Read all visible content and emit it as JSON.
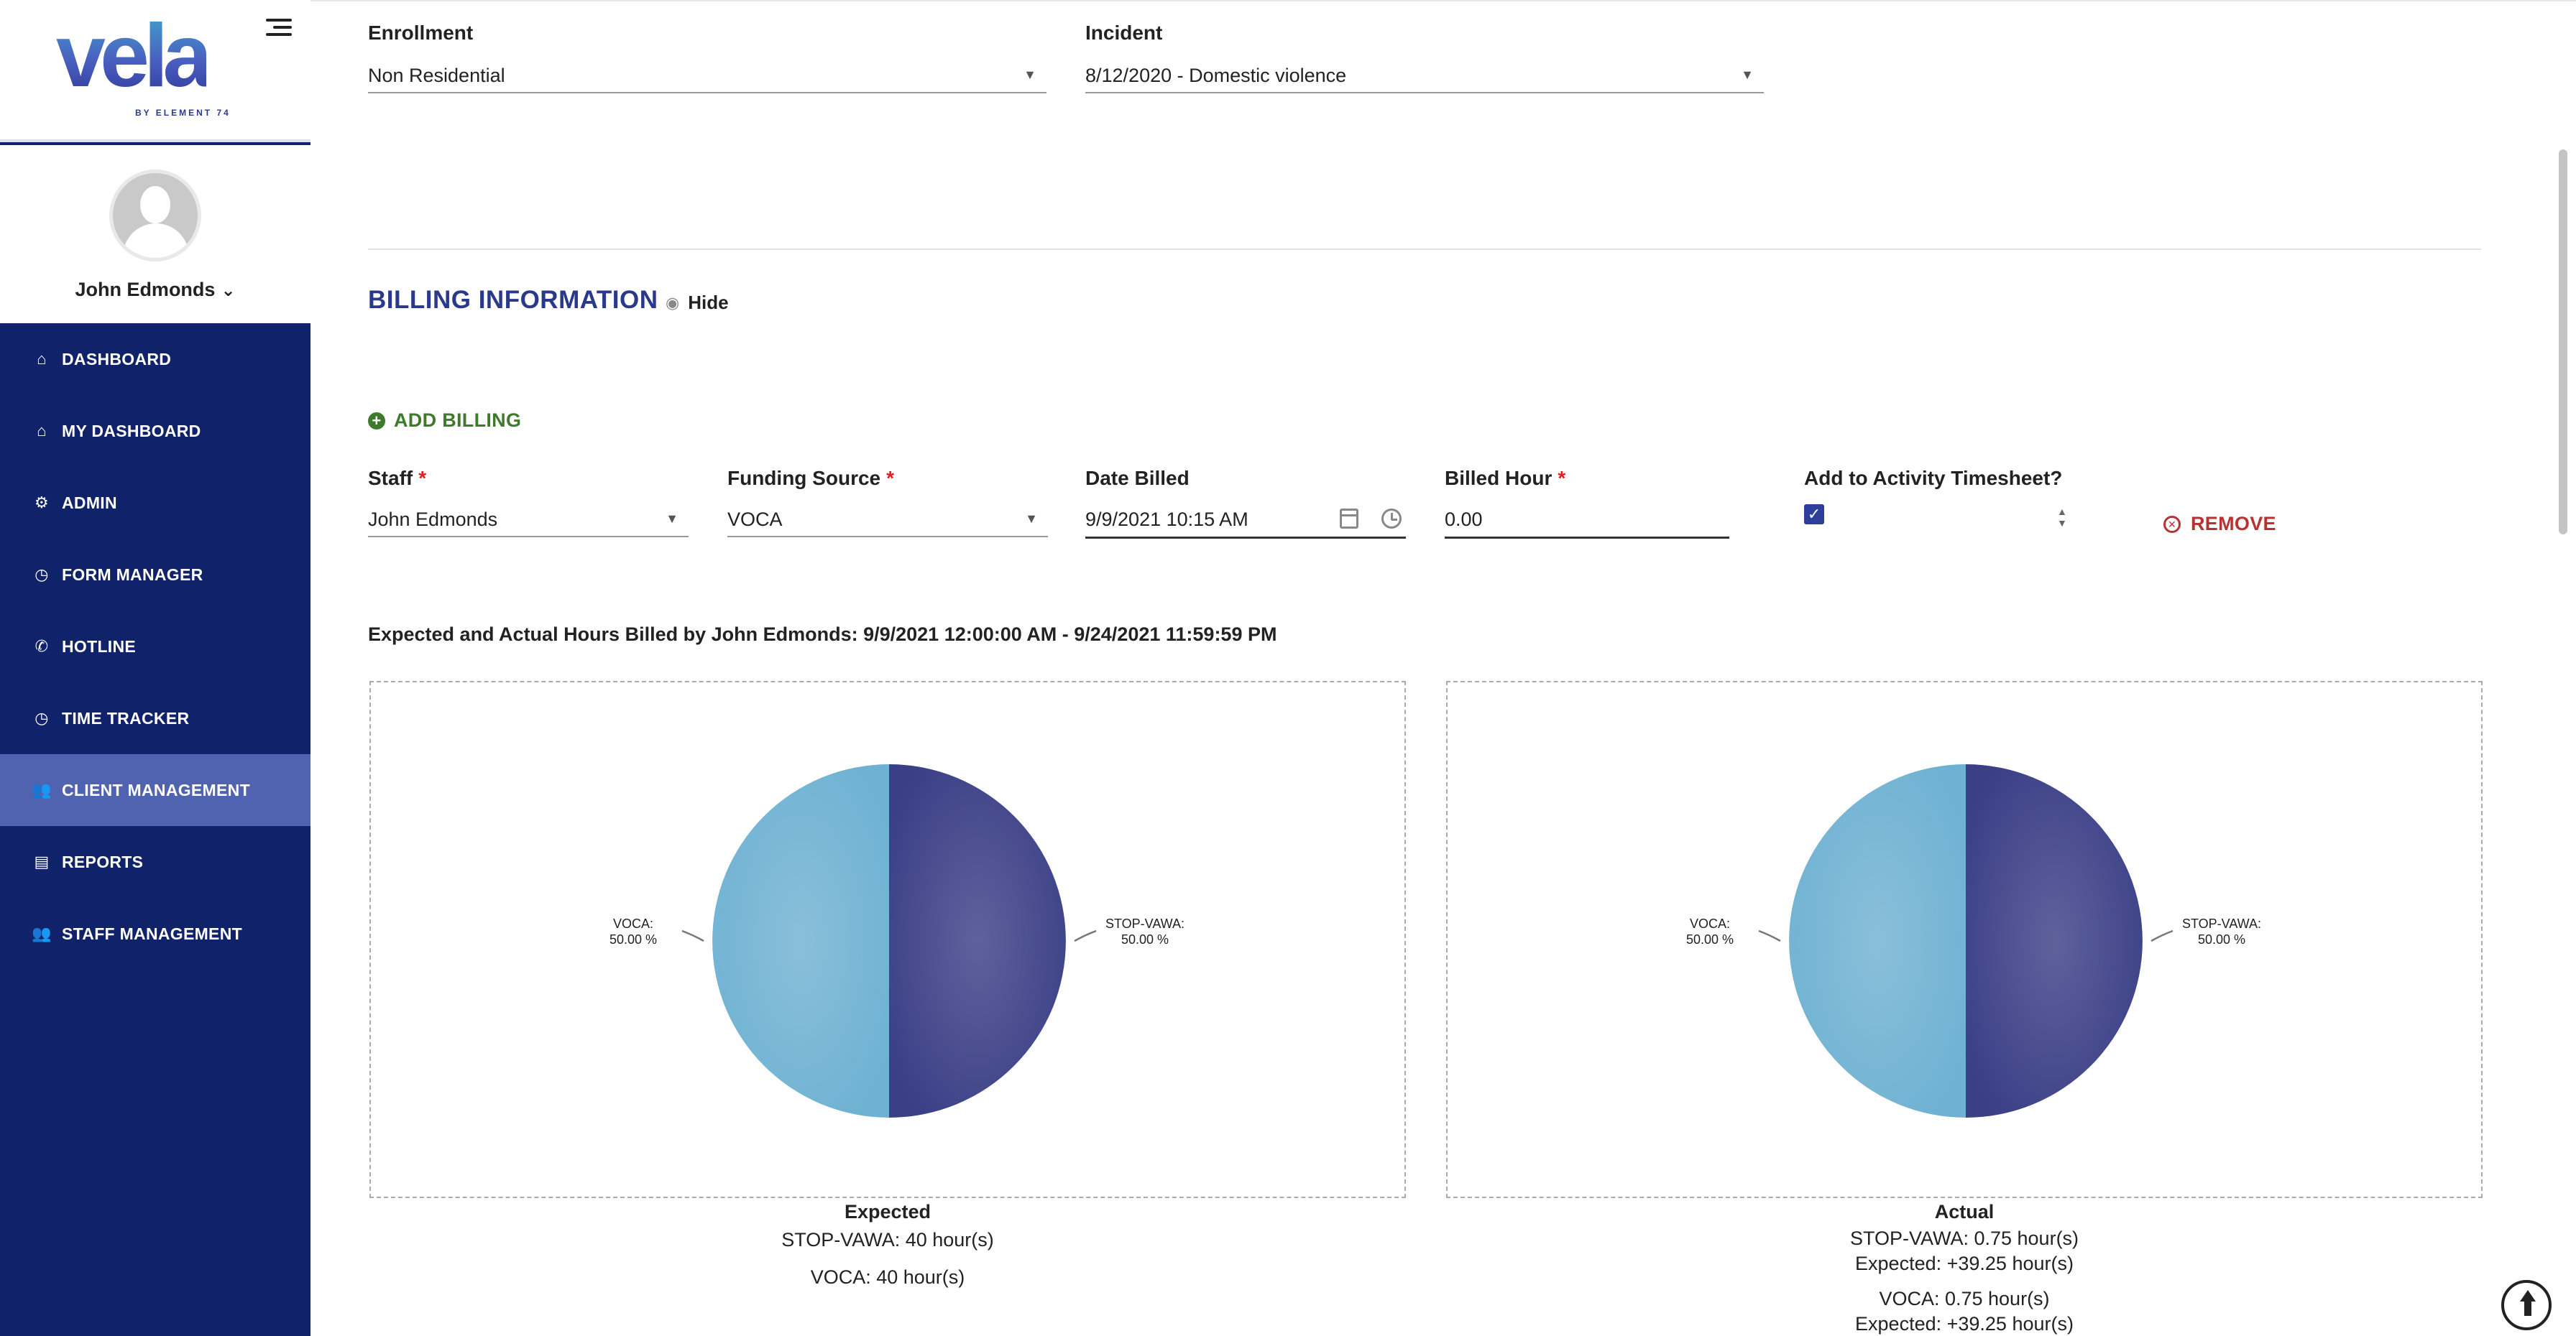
{
  "app": {
    "logo": "vela",
    "logo_sub": "BY ELEMENT 74"
  },
  "user": {
    "name": "John Edmonds"
  },
  "sidebar": {
    "items": [
      {
        "label": "DASHBOARD",
        "icon": "home-icon",
        "glyph": "⌂"
      },
      {
        "label": "MY DASHBOARD",
        "icon": "house-user-icon",
        "glyph": "⌂"
      },
      {
        "label": "ADMIN",
        "icon": "cogs-icon",
        "glyph": "⚙"
      },
      {
        "label": "FORM MANAGER",
        "icon": "clock-icon",
        "glyph": "◷"
      },
      {
        "label": "HOTLINE",
        "icon": "phone-icon",
        "glyph": "✆"
      },
      {
        "label": "TIME TRACKER",
        "icon": "clock-icon",
        "glyph": "◷"
      },
      {
        "label": "CLIENT MANAGEMENT",
        "icon": "users-icon",
        "glyph": "👥"
      },
      {
        "label": "REPORTS",
        "icon": "book-icon",
        "glyph": "▤"
      },
      {
        "label": "STAFF MANAGEMENT",
        "icon": "users-cog-icon",
        "glyph": "👥"
      }
    ],
    "active_index": 6
  },
  "form": {
    "enrollment": {
      "label": "Enrollment",
      "value": "Non Residential"
    },
    "incident": {
      "label": "Incident",
      "value": "8/12/2020 - Domestic violence"
    }
  },
  "billing": {
    "section_title": "BILLING INFORMATION",
    "hide_label": "Hide",
    "add_label": "ADD BILLING",
    "staff": {
      "label": "Staff",
      "value": "John Edmonds",
      "required": "*"
    },
    "funding_source": {
      "label": "Funding Source",
      "value": "VOCA",
      "required": "*"
    },
    "date_billed": {
      "label": "Date Billed",
      "value": "9/9/2021 10:15 AM"
    },
    "billed_hour": {
      "label": "Billed Hour",
      "value": "0.00",
      "required": "*"
    },
    "timesheet": {
      "label": "Add to Activity Timesheet?",
      "checked": true
    },
    "remove_label": "REMOVE"
  },
  "chart_heading": "Expected and Actual Hours Billed by John Edmonds: 9/9/2021 12:00:00 AM - 9/24/2021 11:59:59 PM",
  "chart_data": [
    {
      "type": "pie",
      "title": "Expected",
      "slices": [
        {
          "name": "STOP-VAWA",
          "value": 50.0,
          "label": "STOP-VAWA:",
          "pct": "50.00 %",
          "color": "#3a3f86"
        },
        {
          "name": "VOCA",
          "value": 50.0,
          "label": "VOCA:",
          "pct": "50.00 %",
          "color": "#6fb1d2"
        }
      ],
      "lines": [
        "STOP-VAWA: 40 hour(s)",
        "VOCA: 40 hour(s)"
      ]
    },
    {
      "type": "pie",
      "title": "Actual",
      "slices": [
        {
          "name": "STOP-VAWA",
          "value": 50.0,
          "label": "STOP-VAWA:",
          "pct": "50.00 %",
          "color": "#3a3f86"
        },
        {
          "name": "VOCA",
          "value": 50.0,
          "label": "VOCA:",
          "pct": "50.00 %",
          "color": "#6fb1d2"
        }
      ],
      "lines": [
        "STOP-VAWA: 0.75 hour(s)",
        "Expected: +39.25 hour(s)",
        "VOCA: 0.75 hour(s)",
        "Expected: +39.25 hour(s)"
      ]
    }
  ]
}
